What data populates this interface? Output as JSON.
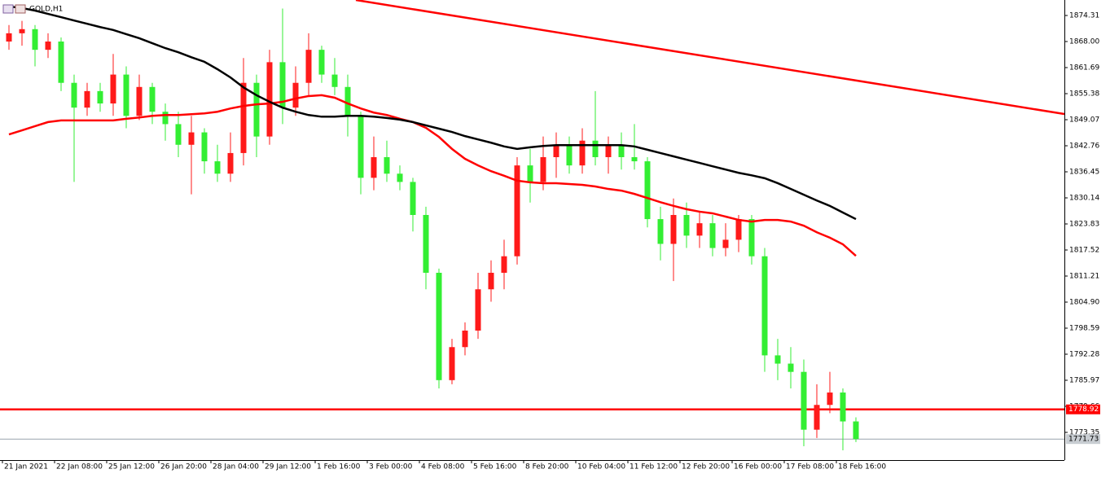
{
  "chart_data": {
    "type": "candlestick",
    "title": "GOLD,H1",
    "categories": [
      "21 Jan 2021",
      null,
      null,
      null,
      "22 Jan 08:00",
      null,
      null,
      null,
      "25 Jan 12:00",
      null,
      null,
      null,
      "26 Jan 20:00",
      null,
      null,
      null,
      "28 Jan 04:00",
      null,
      null,
      null,
      "29 Jan 12:00",
      null,
      null,
      null,
      "1 Feb 16:00",
      null,
      null,
      null,
      "3 Feb 00:00",
      null,
      null,
      null,
      "4 Feb 08:00",
      null,
      null,
      null,
      "5 Feb 16:00",
      null,
      null,
      null,
      "8 Feb 20:00",
      null,
      null,
      null,
      "10 Feb 04:00",
      null,
      null,
      null,
      "11 Feb 12:00",
      null,
      null,
      null,
      "12 Feb 20:00",
      null,
      null,
      null,
      "16 Feb 00:00",
      null,
      null,
      null,
      "17 Feb 08:00",
      null,
      null,
      null,
      "18 Feb 16:00",
      null
    ],
    "open": [
      1868,
      1870,
      1871,
      1866,
      1868,
      1858,
      1852,
      1856,
      1853,
      1860,
      1850,
      1857,
      1851,
      1848,
      1843,
      1846,
      1839,
      1836,
      1841,
      1858,
      1845,
      1863,
      1852,
      1858,
      1866,
      1860,
      1857,
      1850,
      1835,
      1840,
      1836,
      1834,
      1826,
      1812,
      1786,
      1794,
      1798,
      1808,
      1812,
      1816,
      1838,
      1834,
      1840,
      1843,
      1838,
      1844,
      1840,
      1843,
      1840,
      1839,
      1825,
      1819,
      1826,
      1821,
      1824,
      1818,
      1820,
      1825,
      1816,
      1792,
      1790,
      1788,
      1774,
      1780,
      1783,
      1776
    ],
    "high": [
      1872,
      1873,
      1872,
      1870,
      1869,
      1860,
      1858,
      1858,
      1865,
      1862,
      1860,
      1858,
      1853,
      1851,
      1850,
      1847,
      1843,
      1846,
      1864,
      1860,
      1866,
      1876,
      1862,
      1870,
      1867,
      1864,
      1860,
      1851,
      1845,
      1844,
      1838,
      1835,
      1828,
      1813,
      1796,
      1800,
      1812,
      1815,
      1820,
      1840,
      1842,
      1845,
      1846,
      1845,
      1847,
      1856,
      1845,
      1846,
      1848,
      1840,
      1828,
      1830,
      1829,
      1827,
      1826,
      1824,
      1826,
      1826,
      1818,
      1796,
      1794,
      1791,
      1785,
      1788,
      1784,
      1777
    ],
    "low": [
      1866,
      1867,
      1862,
      1864,
      1856,
      1834,
      1850,
      1851,
      1850,
      1847,
      1849,
      1848,
      1844,
      1840,
      1831,
      1836,
      1834,
      1834,
      1838,
      1840,
      1843,
      1848,
      1850,
      1855,
      1858,
      1855,
      1845,
      1831,
      1832,
      1834,
      1832,
      1822,
      1808,
      1784,
      1785,
      1792,
      1796,
      1805,
      1808,
      1814,
      1829,
      1832,
      1835,
      1836,
      1836,
      1838,
      1836,
      1837,
      1837,
      1823,
      1815,
      1810,
      1818,
      1818,
      1816,
      1816,
      1817,
      1814,
      1788,
      1786,
      1784,
      1770,
      1772,
      1778,
      1769,
      1771
    ],
    "close": [
      1870,
      1871,
      1866,
      1868,
      1858,
      1852,
      1856,
      1853,
      1860,
      1850,
      1857,
      1851,
      1848,
      1843,
      1846,
      1839,
      1836,
      1841,
      1858,
      1845,
      1863,
      1852,
      1858,
      1866,
      1860,
      1857,
      1850,
      1835,
      1840,
      1836,
      1834,
      1826,
      1812,
      1786,
      1794,
      1798,
      1808,
      1812,
      1816,
      1838,
      1834,
      1840,
      1843,
      1838,
      1844,
      1840,
      1843,
      1840,
      1839,
      1825,
      1819,
      1826,
      1821,
      1824,
      1818,
      1820,
      1825,
      1816,
      1792,
      1790,
      1788,
      1774,
      1780,
      1783,
      1776,
      1771.73
    ],
    "up_color": "#ff1a1a",
    "down_color": "#33ee33",
    "series": [
      {
        "color": "#ff0000",
        "values": [
          1845.5,
          1846.5,
          1847.5,
          1848.5,
          1848.9,
          1848.9,
          1848.9,
          1848.9,
          1848.9,
          1849.3,
          1849.6,
          1850.0,
          1850.2,
          1850.2,
          1850.4,
          1850.6,
          1851.0,
          1851.8,
          1852.4,
          1852.8,
          1853.0,
          1853.4,
          1854.2,
          1854.8,
          1855.0,
          1854.4,
          1853.0,
          1851.8,
          1850.8,
          1850.2,
          1849.3,
          1848.5,
          1847.1,
          1844.9,
          1842.0,
          1839.6,
          1838.0,
          1836.6,
          1835.5,
          1834.3,
          1833.9,
          1833.7,
          1833.7,
          1833.5,
          1833.3,
          1832.9,
          1832.3,
          1831.9,
          1831.1,
          1830.1,
          1829.1,
          1828.2,
          1827.4,
          1826.8,
          1826.4,
          1825.6,
          1824.8,
          1824.4,
          1824.8,
          1824.8,
          1824.4,
          1823.4,
          1821.8,
          1820.5,
          1818.9,
          1816.1
        ]
      },
      {
        "color": "#000000",
        "values": [
          1876.5,
          1876.1,
          1875.5,
          1874.7,
          1873.9,
          1873.1,
          1872.3,
          1871.5,
          1870.8,
          1869.8,
          1868.8,
          1867.6,
          1866.4,
          1865.4,
          1864.2,
          1863.1,
          1861.3,
          1859.3,
          1856.9,
          1855.0,
          1853.4,
          1852.0,
          1851.0,
          1850.2,
          1849.8,
          1849.8,
          1850.0,
          1850.0,
          1849.8,
          1849.5,
          1849.1,
          1848.5,
          1847.7,
          1846.9,
          1846.1,
          1845.1,
          1844.3,
          1843.5,
          1842.6,
          1842.0,
          1842.4,
          1842.7,
          1842.9,
          1842.9,
          1842.9,
          1842.9,
          1842.9,
          1842.9,
          1842.6,
          1841.8,
          1841.0,
          1840.2,
          1839.4,
          1838.6,
          1837.8,
          1837.0,
          1836.2,
          1835.6,
          1834.9,
          1833.7,
          1832.3,
          1830.9,
          1829.5,
          1828.2,
          1826.6,
          1825.0
        ]
      }
    ],
    "trendline": {
      "x": [
        26.625,
        81
      ],
      "y": [
        1878.06,
        1850.45
      ],
      "color": "#ff0000"
    },
    "level": {
      "value": 1778.92,
      "color": "#ff0000"
    },
    "last_price": 1771.73,
    "ylim": [
      1766.64,
      1878.06
    ],
    "yticks": [
      1874.31,
      {
        "value": 1868,
        "label": "1868.00"
      },
      1861.69,
      1855.38,
      1849.07,
      1842.76,
      1836.45,
      1830.14,
      1823.83,
      1817.52,
      1811.21,
      {
        "value": 1804.9,
        "label": "1804.90"
      },
      1798.59,
      1792.28,
      1785.97,
      1779.66,
      1773.35
    ]
  }
}
